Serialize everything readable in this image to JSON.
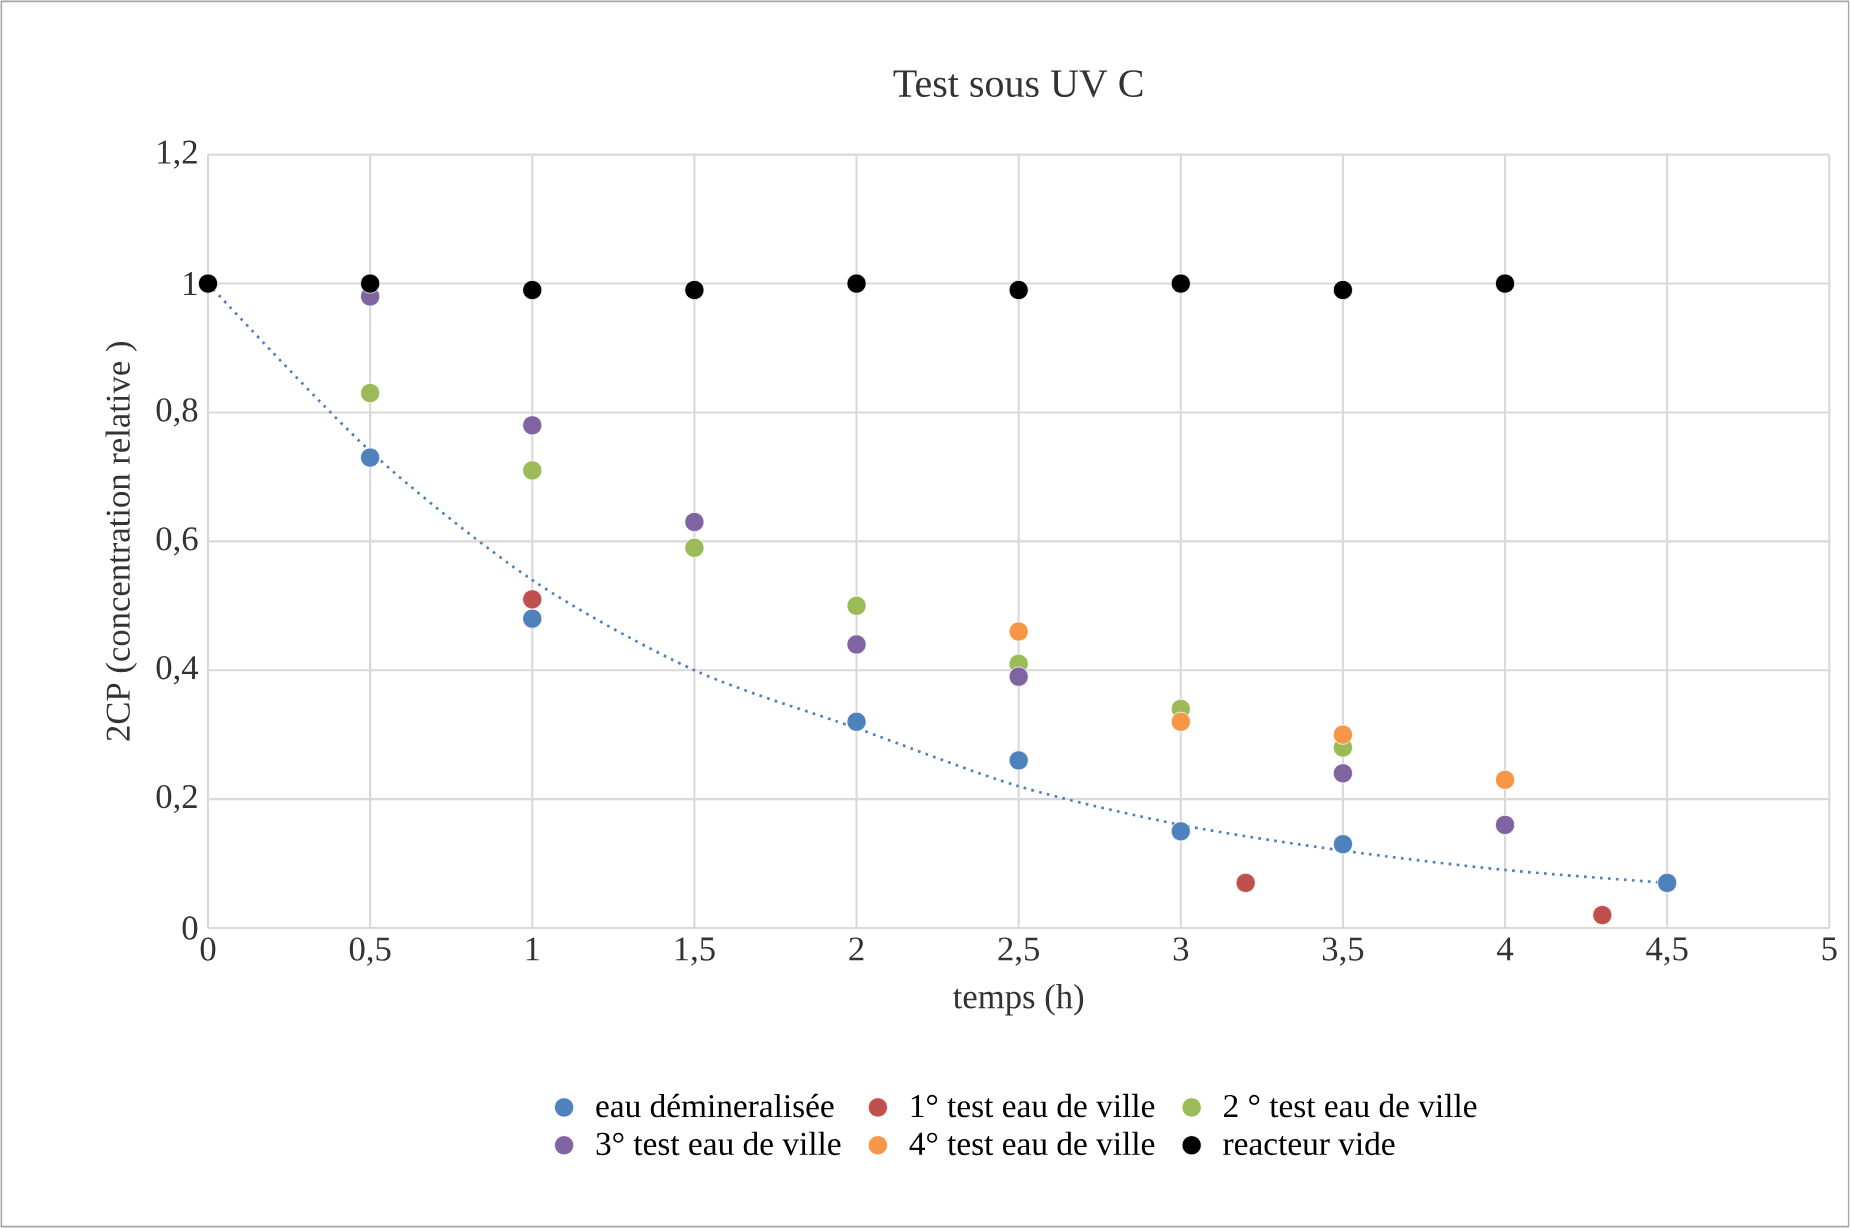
{
  "chart_data": {
    "type": "scatter",
    "title": "Test sous UV C",
    "xlabel": "temps (h)",
    "ylabel": "2CP (concentration relative )",
    "x": [
      0,
      0.5,
      1,
      1.5,
      2,
      2.5,
      3,
      3.5,
      4,
      4.5
    ],
    "xlim": [
      0,
      5
    ],
    "ylim": [
      0,
      1.2
    ],
    "xticks": [
      0,
      {
        "value": 0.5,
        "label": "0,5"
      },
      1,
      {
        "value": 1.5,
        "label": "1,5"
      },
      2,
      {
        "value": 2.5,
        "label": "2,5"
      },
      3,
      {
        "value": 3.5,
        "label": "3,5"
      },
      4,
      {
        "value": 4.5,
        "label": "4,5"
      },
      5
    ],
    "yticks": [
      0,
      {
        "value": 0.2,
        "label": "0,2"
      },
      {
        "value": 0.4,
        "label": "0,4"
      },
      {
        "value": 0.6,
        "label": "0,6"
      },
      {
        "value": 0.8,
        "label": "0,8"
      },
      1,
      {
        "value": 1.2,
        "label": "1,2"
      }
    ],
    "grid": true,
    "legend": "bottom",
    "series": [
      {
        "name": "eau démineralisée",
        "color": "#4f81bd",
        "marker": "circle",
        "values": [
          null,
          0.73,
          0.48,
          null,
          0.32,
          0.26,
          0.15,
          0.13,
          null,
          0.07
        ]
      },
      {
        "name": "1° test eau de ville",
        "color": "#c0504d",
        "marker": "circle",
        "x": [
          1,
          3.2,
          4.3
        ],
        "values": [
          0.51,
          0.07,
          0.02
        ]
      },
      {
        "name": "2 ° test eau de ville",
        "color": "#9bbb59",
        "marker": "circle",
        "values": [
          null,
          0.83,
          0.71,
          0.59,
          0.5,
          0.41,
          0.34,
          0.28,
          null,
          null
        ]
      },
      {
        "name": "3° test eau de ville",
        "color": "#8064a2",
        "marker": "circle",
        "values": [
          null,
          0.98,
          0.78,
          0.63,
          0.44,
          0.39,
          null,
          0.24,
          0.16,
          null
        ]
      },
      {
        "name": "4° test eau de ville",
        "color": "#f79646",
        "marker": "circle",
        "values": [
          null,
          null,
          null,
          null,
          null,
          0.46,
          0.32,
          0.3,
          0.23,
          null
        ]
      },
      {
        "name": "reacteur vide",
        "color": "#000000",
        "marker": "circle",
        "values": [
          1,
          1,
          0.99,
          0.99,
          1,
          0.99,
          1,
          0.99,
          1,
          null
        ]
      },
      {
        "type": "line",
        "color": "#4f81bd",
        "marker": "none",
        "line_style": "dotted",
        "x": [
          0,
          0.5,
          1,
          1.5,
          2,
          2.5,
          3,
          3.5,
          4,
          4.5
        ],
        "values": [
          1,
          0.74,
          0.54,
          0.4,
          0.31,
          0.22,
          0.16,
          0.12,
          0.09,
          0.07
        ]
      }
    ]
  }
}
